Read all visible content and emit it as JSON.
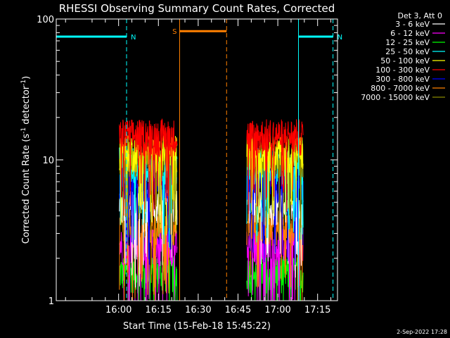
{
  "chart_data": {
    "type": "line",
    "title": "RHESSI Observing Summary Count Rates, Corrected",
    "xlabel": "Start Time (15-Feb-18 15:45:22)",
    "ylabel_main": "Corrected Count Rate (s",
    "ylabel_sup1": "-1",
    "ylabel_mid": " detector",
    "ylabel_sup2": "-1",
    "ylabel_end": ")",
    "footer_date": "2-Sep-2022 17:28",
    "yscale": "log",
    "ylim": [
      1,
      100
    ],
    "xlim_minutes": [
      -8.5,
      97.5
    ],
    "grid": false,
    "legend_placement": "right-outside",
    "legend_header": "Det 3, Att 0",
    "y_ticks": [
      {
        "value": 1,
        "label": "1"
      },
      {
        "value": 10,
        "label": "10"
      },
      {
        "value": 100,
        "label": "100"
      }
    ],
    "x_ticks": [
      {
        "minute": 15,
        "label": "16:00"
      },
      {
        "minute": 30,
        "label": "16:15"
      },
      {
        "minute": 45,
        "label": "16:30"
      },
      {
        "minute": 60,
        "label": "16:45"
      },
      {
        "minute": 75,
        "label": "17:00"
      },
      {
        "minute": 90,
        "label": "17:15"
      }
    ],
    "series": [
      {
        "name": "3 - 6 keV",
        "color": "#ffffff",
        "level": 4.8
      },
      {
        "name": "6 - 12 keV",
        "color": "#ff00ff",
        "level": 2.5
      },
      {
        "name": "12 - 25 keV",
        "color": "#00ff00",
        "level": 1.6
      },
      {
        "name": "25 - 50 keV",
        "color": "#00ffff",
        "level": 9.5
      },
      {
        "name": "50 - 100 keV",
        "color": "#ffff00",
        "level": 11.5
      },
      {
        "name": "100 - 300 keV",
        "color": "#ff0000",
        "level": 15.0
      },
      {
        "name": "300 - 800 keV",
        "color": "#0000ff",
        "level": 7.0
      },
      {
        "name": "800 - 7000 keV",
        "color": "#ff8000",
        "level": 3.5
      },
      {
        "name": "7000 - 15000 keV",
        "color": "#888800",
        "level": 10.5
      }
    ],
    "data_segments": [
      {
        "start_minute": 15.3,
        "end_minute": 37.1
      },
      {
        "start_minute": 63.3,
        "end_minute": 84.6
      }
    ],
    "annotations": [
      {
        "label": "N",
        "color": "#00ffff",
        "minute_start": -8.5,
        "minute_end": 18.0,
        "level": 75
      },
      {
        "label": "N",
        "color": "#00ffff",
        "minute_start": 82.8,
        "minute_end": 95.8,
        "level": 75
      },
      {
        "label": "S",
        "color": "#ff8000",
        "minute_start": 38.0,
        "minute_end": 55.7,
        "level": 82
      }
    ]
  }
}
